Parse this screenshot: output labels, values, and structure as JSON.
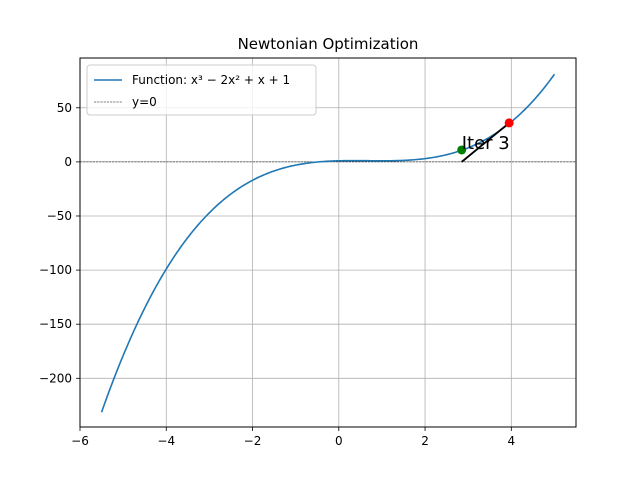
{
  "chart_data": {
    "type": "line",
    "title": "Newtonian Optimization",
    "xlabel": "",
    "ylabel": "",
    "xlim": [
      -6.0,
      5.5
    ],
    "ylim": [
      -245,
      96
    ],
    "x_ticks": [
      -6,
      -4,
      -2,
      0,
      2,
      4
    ],
    "x_tick_labels": [
      "−6",
      "−4",
      "−2",
      "0",
      "2",
      "4"
    ],
    "y_ticks": [
      -200,
      -150,
      -100,
      -50,
      0,
      50
    ],
    "y_tick_labels": [
      "−200",
      "−150",
      "−100",
      "−50",
      "0",
      "50"
    ],
    "grid": true,
    "legend_position": "top-left",
    "series": [
      {
        "name": "Function: x³ − 2x² + x + 1",
        "color": "#1f77b4",
        "x_range": [
          -5.5,
          5.0
        ],
        "coefficients": [
          1,
          -2,
          1,
          1
        ],
        "style": "solid"
      },
      {
        "name": "y=0",
        "color": "#000000",
        "y": 0,
        "style": "dashed"
      }
    ],
    "points": [
      {
        "x": 2.85,
        "y": 11,
        "color": "#008000"
      },
      {
        "x": 3.95,
        "y": 36,
        "color": "#ff0000"
      }
    ],
    "tangent_segment": {
      "x": [
        2.85,
        3.95
      ],
      "y": [
        0,
        36
      ],
      "color": "#000000"
    },
    "annotation": {
      "text": "Iter 3",
      "x": 2.85,
      "y": 11
    }
  }
}
